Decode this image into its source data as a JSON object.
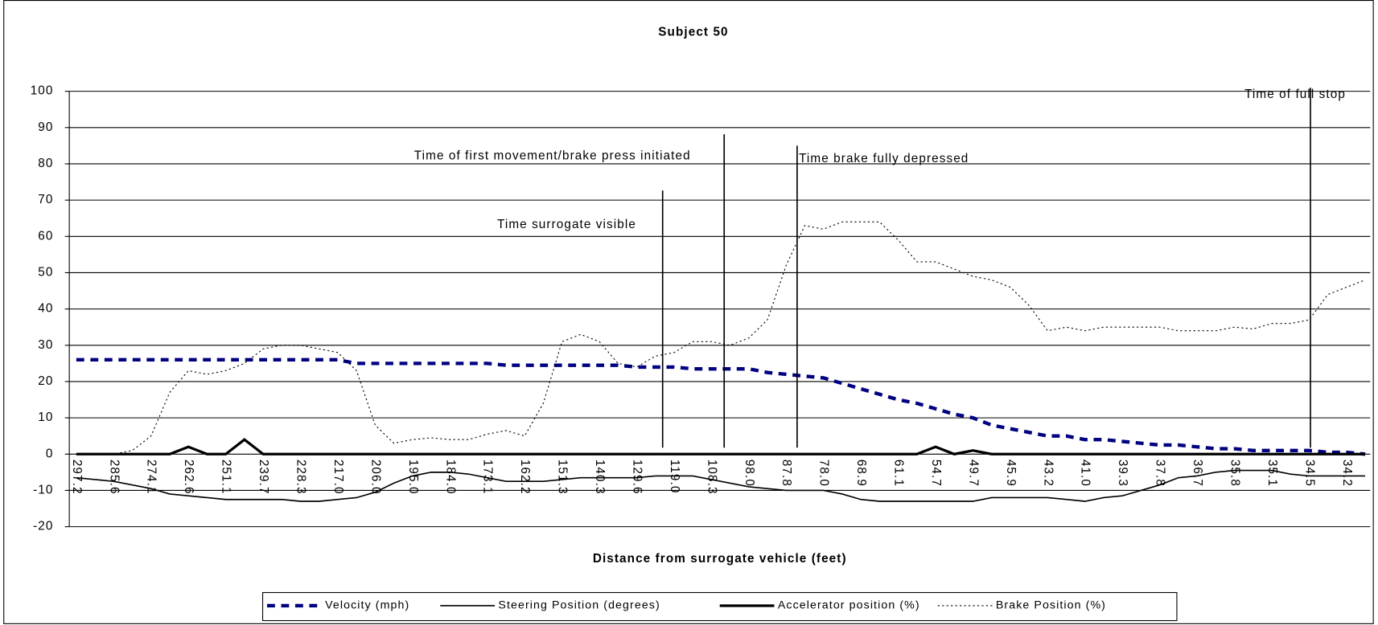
{
  "chart_data": {
    "type": "line",
    "title": "Subject 50",
    "x_label": "Distance from surrogate vehicle (feet)",
    "categories": [
      "297.2",
      null,
      "285.6",
      null,
      "274.1",
      null,
      "262.6",
      null,
      "251.1",
      null,
      "239.7",
      null,
      "228.3",
      null,
      "217.0",
      null,
      "206.0",
      null,
      "195.0",
      null,
      "184.0",
      null,
      "173.1",
      null,
      "162.2",
      null,
      "151.3",
      null,
      "140.3",
      null,
      "129.6",
      null,
      "119.0",
      null,
      "108.3",
      null,
      "98.0",
      null,
      "87.8",
      null,
      "78.0",
      null,
      "68.9",
      null,
      "61.1",
      null,
      "54.7",
      null,
      "49.7",
      null,
      "45.9",
      null,
      "43.2",
      null,
      "41.0",
      null,
      "39.3",
      null,
      "37.8",
      null,
      "36.7",
      null,
      "35.8",
      null,
      "35.1",
      null,
      "34.5",
      null,
      "34.2",
      null
    ],
    "series": [
      {
        "name": "Velocity (mph)",
        "color": "#000080",
        "values": [
          26,
          26,
          26,
          26,
          26,
          26,
          26,
          26,
          26,
          26,
          26,
          26,
          26,
          26,
          26,
          25,
          25,
          25,
          25,
          25,
          25,
          25,
          25,
          24.5,
          24.5,
          24.5,
          24.5,
          24.5,
          24.5,
          24.5,
          24,
          24,
          24,
          23.5,
          23.5,
          23.5,
          23.5,
          22.5,
          22,
          21.5,
          21,
          19.5,
          18,
          16.5,
          15,
          14,
          12.5,
          11,
          10,
          8,
          7,
          6,
          5,
          5,
          4,
          4,
          3.5,
          3,
          2.5,
          2.5,
          2,
          1.5,
          1.5,
          1,
          1,
          1,
          1,
          0.5,
          0.5,
          0
        ]
      },
      {
        "name": "Steering Position (degrees)",
        "color": "#000000",
        "values": [
          -6.5,
          -7,
          -7.5,
          -8.5,
          -9.5,
          -11,
          -11.5,
          -12,
          -12.5,
          -12.5,
          -12.5,
          -12.5,
          -13,
          -13,
          -12.5,
          -12,
          -10.5,
          -8,
          -6,
          -5,
          -5,
          -5.5,
          -6.5,
          -7.5,
          -7.5,
          -7.5,
          -7,
          -6.5,
          -6.5,
          -6.5,
          -6.5,
          -6,
          -6,
          -6,
          -7,
          -8,
          -9,
          -9.5,
          -10,
          -10,
          -10,
          -11,
          -12.5,
          -13,
          -13,
          -13,
          -13,
          -13,
          -13,
          -12,
          -12,
          -12,
          -12,
          -12.5,
          -13,
          -12,
          -11.5,
          -10,
          -8.5,
          -6.5,
          -6,
          -5,
          -4.5,
          -4.5,
          -4.5,
          -5.5,
          -6,
          -6,
          -6,
          -6
        ]
      },
      {
        "name": "Accelerator position (%)",
        "color": "#000000",
        "values": [
          0,
          0,
          0,
          0,
          0,
          0,
          2,
          0,
          0,
          4,
          0,
          0,
          0,
          0,
          0,
          0,
          0,
          0,
          0,
          0,
          0,
          0,
          0,
          0,
          0,
          0,
          0,
          0,
          0,
          0,
          0,
          0,
          0,
          0,
          0,
          0,
          0,
          0,
          0,
          0,
          0,
          0,
          0,
          0,
          0,
          0,
          2,
          0,
          1,
          0,
          0,
          0,
          0,
          0,
          0,
          0,
          0,
          0,
          0,
          0,
          0,
          0,
          0,
          0,
          0,
          0,
          0,
          0,
          0,
          0
        ]
      },
      {
        "name": "Brake Position (%)",
        "color": "#000000",
        "values": [
          0,
          0,
          0,
          1,
          5,
          17,
          23,
          22,
          23,
          25,
          29,
          30,
          30,
          29,
          28,
          23,
          8,
          3,
          4,
          4.5,
          4,
          4,
          5.5,
          6.5,
          5,
          14,
          31,
          33,
          31,
          25,
          24,
          27,
          28,
          31,
          31,
          30,
          32,
          37,
          52,
          63,
          62,
          64,
          64,
          64,
          59,
          53,
          53,
          51,
          49,
          48,
          46,
          41,
          34,
          35,
          34,
          35,
          35,
          35,
          35,
          34,
          34,
          34,
          35,
          34.5,
          36,
          36,
          37,
          44,
          46,
          48
        ]
      }
    ],
    "ylim": [
      -20,
      100
    ],
    "yticks": [
      -20,
      -10,
      0,
      10,
      20,
      30,
      40,
      50,
      60,
      70,
      80,
      90,
      100
    ],
    "grid": true,
    "legend": "bottom",
    "annotations": [
      "Time surrogate visible",
      "Time of first movement/brake press initiated",
      "Time brake fully depressed",
      "Time of full stop"
    ]
  }
}
